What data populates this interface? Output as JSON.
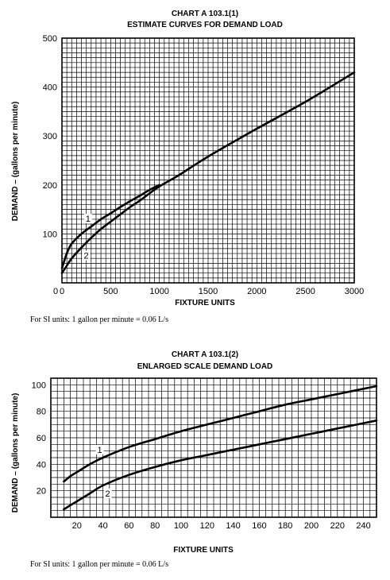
{
  "chart_data": [
    {
      "type": "line",
      "title": "CHART A 103.1(1)",
      "subtitle": "ESTIMATE CURVES FOR DEMAND LOAD",
      "xlabel": "FIXTURE UNITS",
      "ylabel": "DEMAND – (gallons per minute)",
      "xlim": [
        0,
        3000
      ],
      "ylim": [
        0,
        500
      ],
      "xticks": [
        0,
        500,
        1000,
        1500,
        2000,
        2500,
        3000
      ],
      "yticks": [
        100,
        200,
        300,
        400,
        500
      ],
      "x_origin_label": "0",
      "grid": true,
      "series": [
        {
          "name": "1",
          "x": [
            0,
            50,
            100,
            200,
            300,
            400,
            500,
            600,
            700,
            800,
            900,
            1000
          ],
          "values": [
            30,
            60,
            80,
            100,
            115,
            130,
            142,
            155,
            167,
            178,
            190,
            200
          ]
        },
        {
          "name": "2",
          "x": [
            0,
            50,
            100,
            200,
            300,
            400,
            500,
            600,
            700,
            800,
            900,
            1000,
            1200,
            1500,
            2000,
            2500,
            3000
          ],
          "values": [
            20,
            35,
            50,
            72,
            92,
            110,
            125,
            140,
            155,
            168,
            183,
            197,
            220,
            258,
            315,
            370,
            430
          ]
        }
      ],
      "note": "For SI units: 1 gallon per minute = 0.06 L/s"
    },
    {
      "type": "line",
      "title": "CHART A 103.1(2)",
      "subtitle": "ENLARGED SCALE DEMAND LOAD",
      "xlabel": "FIXTURE UNITS",
      "ylabel": "DEMAND – (gallons per minute)",
      "xlim": [
        0,
        250
      ],
      "ylim": [
        0,
        105
      ],
      "xticks": [
        20,
        40,
        60,
        80,
        100,
        120,
        140,
        160,
        180,
        200,
        220,
        240
      ],
      "yticks": [
        20,
        40,
        60,
        80,
        100
      ],
      "grid": true,
      "series": [
        {
          "name": "1",
          "x": [
            10,
            15,
            20,
            30,
            40,
            60,
            80,
            100,
            120,
            140,
            160,
            180,
            200,
            220,
            250
          ],
          "values": [
            27,
            31,
            34,
            40,
            45,
            53,
            59,
            65,
            70,
            75,
            80,
            85,
            89,
            93,
            99
          ]
        },
        {
          "name": "2",
          "x": [
            10,
            20,
            30,
            40,
            60,
            80,
            100,
            120,
            140,
            160,
            180,
            200,
            220,
            250
          ],
          "values": [
            6,
            12,
            18,
            24,
            32,
            38,
            43,
            47,
            51,
            55,
            59,
            63,
            67,
            73
          ]
        }
      ],
      "note": "For SI units: 1 gallon per minute = 0.06 L/s"
    }
  ]
}
